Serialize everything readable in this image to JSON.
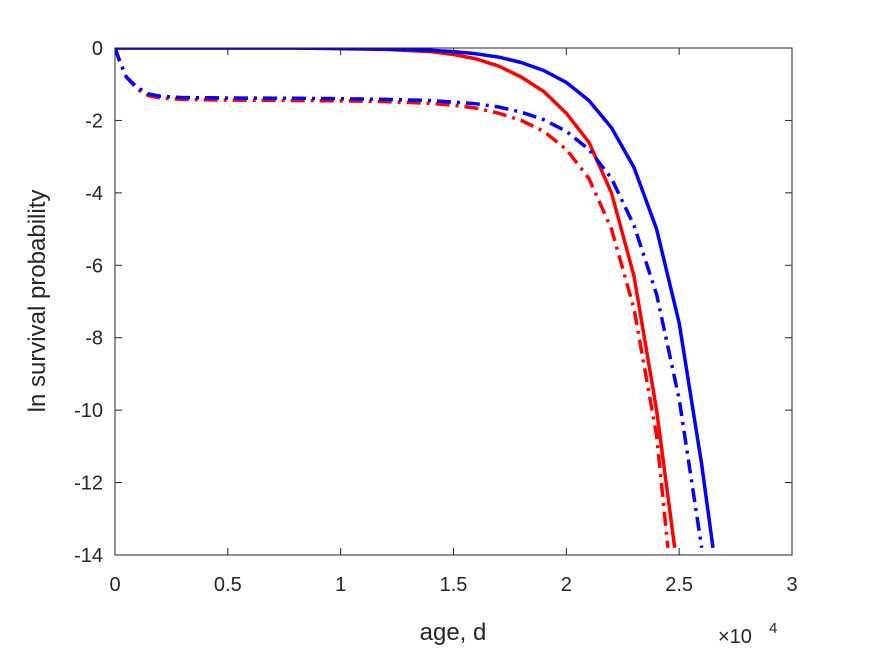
{
  "chart_data": {
    "type": "line",
    "xlabel": "age, d",
    "ylabel": "ln survival probability",
    "x_multiplier": "×10",
    "x_multiplier_exponent": "4",
    "xlim": [
      0,
      30000
    ],
    "ylim": [
      -14,
      0
    ],
    "x_ticks": [
      0,
      5000,
      10000,
      15000,
      20000,
      25000,
      30000
    ],
    "x_tick_labels": [
      "0",
      "0.5",
      "1",
      "1.5",
      "2",
      "2.5",
      "3"
    ],
    "y_ticks": [
      0,
      -2,
      -4,
      -6,
      -8,
      -10,
      -12,
      -14
    ],
    "y_tick_labels": [
      "0",
      "-2",
      "-4",
      "-6",
      "-8",
      "-10",
      "-12",
      "-14"
    ],
    "grid": false,
    "legend": "none",
    "series": [
      {
        "color": "#ff0000",
        "style": "solid",
        "x": [
          0,
          2000,
          4000,
          6000,
          8000,
          10000,
          12000,
          14000,
          15000,
          16000,
          17000,
          18000,
          19000,
          20000,
          21000,
          22000,
          23000,
          24000,
          24800
        ],
        "y": [
          0,
          0,
          0,
          0,
          0,
          -0.02,
          -0.04,
          -0.1,
          -0.18,
          -0.3,
          -0.5,
          -0.8,
          -1.2,
          -1.8,
          -2.6,
          -4.0,
          -6.3,
          -10.0,
          -13.8
        ]
      },
      {
        "color": "#0000ff",
        "style": "solid",
        "x": [
          0,
          2000,
          4000,
          6000,
          8000,
          10000,
          12000,
          14000,
          15000,
          16000,
          17000,
          18000,
          19000,
          20000,
          21000,
          22000,
          23000,
          24000,
          25000,
          26000,
          26500
        ],
        "y": [
          0,
          0,
          0,
          0,
          0,
          -0.01,
          -0.03,
          -0.06,
          -0.1,
          -0.16,
          -0.25,
          -0.4,
          -0.62,
          -0.95,
          -1.45,
          -2.2,
          -3.3,
          -5.0,
          -7.6,
          -11.5,
          -13.8
        ]
      },
      {
        "color": "#ff0000",
        "style": "dash-dot",
        "x": [
          0,
          200,
          500,
          1000,
          1500,
          2000,
          3000,
          5000,
          8000,
          10000,
          12000,
          14000,
          15000,
          16000,
          17000,
          18000,
          19000,
          20000,
          21000,
          22000,
          23000,
          24000,
          24500
        ],
        "y": [
          0,
          -0.35,
          -0.8,
          -1.15,
          -1.32,
          -1.38,
          -1.42,
          -1.44,
          -1.45,
          -1.46,
          -1.48,
          -1.53,
          -1.58,
          -1.66,
          -1.8,
          -2.0,
          -2.3,
          -2.8,
          -3.6,
          -5.0,
          -7.2,
          -10.7,
          -13.8
        ]
      },
      {
        "color": "#0000ff",
        "style": "dash-dot",
        "x": [
          0,
          200,
          500,
          1000,
          1500,
          2000,
          3000,
          5000,
          8000,
          10000,
          12000,
          14000,
          16000,
          17000,
          18000,
          19000,
          20000,
          21000,
          22000,
          23000,
          24000,
          25000,
          26000
        ],
        "y": [
          0,
          -0.35,
          -0.8,
          -1.1,
          -1.27,
          -1.33,
          -1.37,
          -1.38,
          -1.39,
          -1.4,
          -1.42,
          -1.45,
          -1.54,
          -1.63,
          -1.77,
          -1.98,
          -2.3,
          -2.8,
          -3.6,
          -4.9,
          -6.8,
          -9.7,
          -13.8
        ]
      }
    ]
  }
}
